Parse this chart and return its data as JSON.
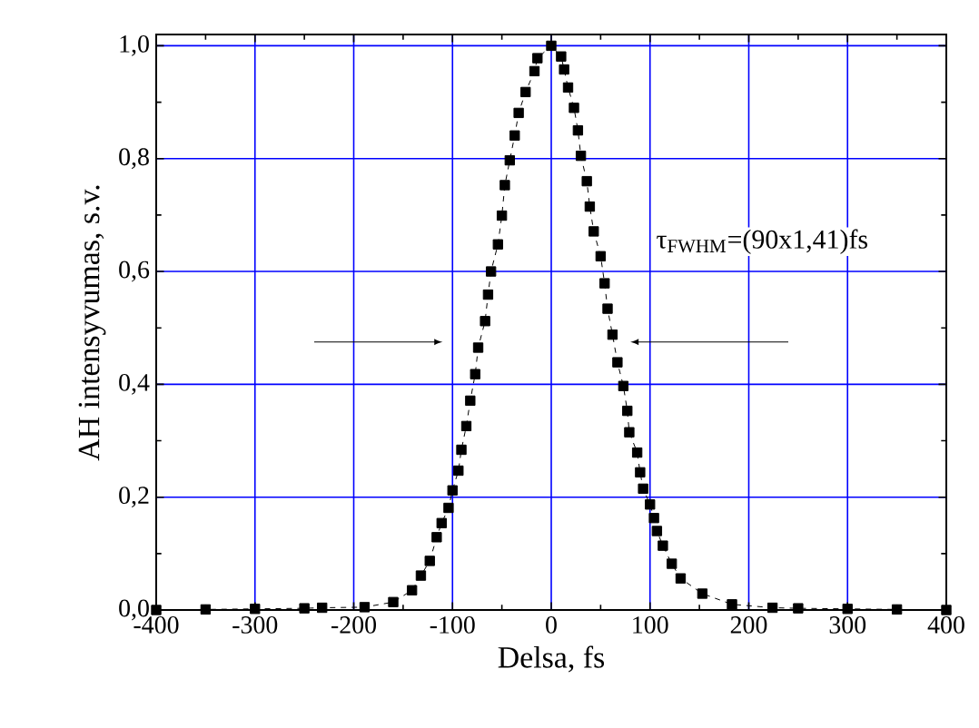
{
  "chart_data": {
    "type": "line",
    "xlabel": "Delsa, fs",
    "ylabel": "AH intensyvumas, s.v.",
    "x": [
      -400,
      -350,
      -300,
      -250,
      -232,
      -189,
      -160,
      -141,
      -132,
      -123,
      -116,
      -111,
      -104,
      -100,
      -94,
      -91,
      -86,
      -82,
      -77,
      -74,
      -67,
      -64,
      -61,
      -54,
      -50,
      -47,
      -42,
      -37,
      -33,
      -26,
      -17,
      -14,
      0,
      10,
      13,
      17,
      23,
      27,
      30,
      36,
      39,
      43,
      50,
      54,
      57,
      62,
      67,
      73,
      77,
      79,
      87,
      90,
      93,
      100,
      104,
      107,
      113,
      122,
      131,
      153,
      183,
      224,
      250,
      300,
      350,
      400
    ],
    "values": [
      0.0,
      0.001,
      0.002,
      0.003,
      0.004,
      0.005,
      0.014,
      0.035,
      0.061,
      0.087,
      0.129,
      0.154,
      0.181,
      0.212,
      0.247,
      0.284,
      0.326,
      0.371,
      0.418,
      0.465,
      0.512,
      0.559,
      0.6,
      0.648,
      0.699,
      0.753,
      0.797,
      0.841,
      0.881,
      0.918,
      0.955,
      0.978,
      1.0,
      0.981,
      0.958,
      0.926,
      0.89,
      0.85,
      0.805,
      0.76,
      0.715,
      0.671,
      0.627,
      0.579,
      0.534,
      0.488,
      0.439,
      0.397,
      0.353,
      0.315,
      0.279,
      0.244,
      0.215,
      0.187,
      0.163,
      0.14,
      0.114,
      0.082,
      0.056,
      0.029,
      0.01,
      0.004,
      0.003,
      0.002,
      0.001,
      0.0
    ],
    "color": "#000000",
    "marker": "square",
    "line_style": "dashed",
    "grid": true,
    "xlim": [
      -400,
      400
    ],
    "xticks": [
      -400,
      -300,
      -200,
      -100,
      0,
      100,
      200,
      300,
      400
    ],
    "ylim": [
      0,
      1.02
    ],
    "yticks": [
      {
        "value": 0,
        "label": "0,0"
      },
      {
        "value": 0.2,
        "label": "0,2"
      },
      {
        "value": 0.4,
        "label": "0,4"
      },
      {
        "value": 0.6,
        "label": "0,6"
      },
      {
        "value": 0.8,
        "label": "0,8"
      },
      {
        "value": 1,
        "label": "1,0"
      }
    ],
    "annotations": [
      "τ$_{FWHM}$=(90x1,41)fs"
    ]
  }
}
